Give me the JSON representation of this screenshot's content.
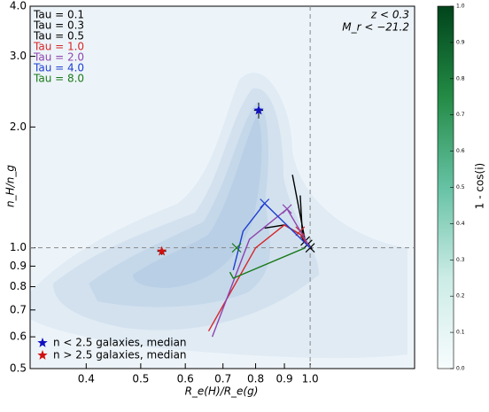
{
  "chart_data": {
    "type": "scatter",
    "xlabel": "R_e(H)/R_e(g)",
    "ylabel": "n_H/n_g",
    "xlim": [
      0.318,
      1.533
    ],
    "ylim": [
      0.5,
      4.0
    ],
    "xscale": "log",
    "yscale": "log",
    "xticks": [
      0.4,
      0.5,
      0.6,
      0.7,
      0.8,
      0.9,
      {
        "value": 1.0,
        "label": "1.0"
      }
    ],
    "yticks": [
      0.5,
      0.6,
      0.7,
      0.8,
      0.9,
      {
        "value": 1.0,
        "label": "1.0"
      },
      {
        "value": 2.0,
        "label": "2.0"
      },
      {
        "value": 3.0,
        "label": "3.0"
      },
      {
        "value": 4.0,
        "label": "4.0"
      }
    ],
    "hline": 1.0,
    "vline": 1.0,
    "annotations": [
      "z < 0.3",
      "M_r < −21.2"
    ],
    "tracks": [
      {
        "name": "Tau = 0.1",
        "color": "#000000",
        "x": [
          1.0,
          0.98,
          0.93
        ],
        "y": [
          1.0,
          1.04,
          1.52
        ],
        "marker_x": [
          1.0
        ],
        "marker_y": [
          1.0
        ]
      },
      {
        "name": "Tau = 0.3",
        "color": "#000000",
        "x": [
          1.0,
          0.96,
          0.9,
          0.83
        ],
        "y": [
          1.0,
          1.08,
          1.14,
          1.12
        ],
        "marker_x": [
          0.99
        ],
        "marker_y": [
          1.02
        ]
      },
      {
        "name": "Tau = 0.5",
        "color": "#000000",
        "x": [
          1.0,
          0.97,
          0.96
        ],
        "y": [
          1.0,
          1.05,
          1.35
        ],
        "marker_x": [
          0.98
        ],
        "marker_y": [
          1.04
        ]
      },
      {
        "name": "Tau = 1.0",
        "color": "#d62728",
        "x": [
          1.0,
          0.96,
          0.9,
          0.8,
          0.66
        ],
        "y": [
          1.0,
          1.08,
          1.14,
          1.0,
          0.62
        ],
        "marker_x": [
          0.96
        ],
        "marker_y": [
          1.1
        ]
      },
      {
        "name": "Tau = 2.0",
        "color": "#8e44ad",
        "x": [
          1.0,
          0.91,
          0.78,
          0.67
        ],
        "y": [
          1.0,
          1.25,
          1.05,
          0.6
        ],
        "marker_x": [
          0.91
        ],
        "marker_y": [
          1.25
        ]
      },
      {
        "name": "Tau = 4.0",
        "color": "#1f3fd0",
        "x": [
          1.0,
          0.83,
          0.76,
          0.73
        ],
        "y": [
          1.0,
          1.29,
          1.1,
          0.88
        ],
        "marker_x": [
          0.83
        ],
        "marker_y": [
          1.29
        ]
      },
      {
        "name": "Tau = 8.0",
        "color": "#1a7a1a",
        "x": [
          0.98,
          0.73,
          0.72
        ],
        "y": [
          1.0,
          0.84,
          0.87
        ],
        "marker_x": [
          0.74
        ],
        "marker_y": [
          1.0
        ]
      }
    ],
    "medians": [
      {
        "name": "n < 2.5 galaxies, median",
        "color": "#1010c0",
        "x": 0.81,
        "y": 2.2,
        "xerr": 0.015,
        "yerr": 0.1
      },
      {
        "name": "n > 2.5 galaxies, median",
        "color": "#d01010",
        "x": 0.545,
        "y": 0.98,
        "xerr": 0.01,
        "yerr": 0.02
      }
    ],
    "colorbar": {
      "label": "1 - cos(i)",
      "lim": [
        0,
        1
      ],
      "colors": [
        "#f7fcfd",
        "#ccece6",
        "#66c2a4",
        "#238b45",
        "#00441b"
      ],
      "ticks": [
        {
          "value": 0,
          "label": "0.0"
        },
        0.1,
        0.2,
        0.3,
        0.4,
        0.5,
        0.6,
        0.7,
        0.8,
        0.9,
        {
          "value": 1,
          "label": "1.0"
        }
      ]
    }
  }
}
